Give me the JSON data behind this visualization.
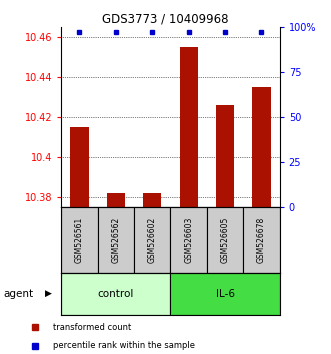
{
  "title": "GDS3773 / 10409968",
  "samples": [
    "GSM526561",
    "GSM526562",
    "GSM526602",
    "GSM526603",
    "GSM526605",
    "GSM526678"
  ],
  "bar_values": [
    10.415,
    10.382,
    10.382,
    10.455,
    10.426,
    10.435
  ],
  "percentile_values": [
    97,
    97,
    97,
    97,
    97,
    97
  ],
  "ylim_left": [
    10.375,
    10.465
  ],
  "ylim_right": [
    0,
    100
  ],
  "yticks_left": [
    10.38,
    10.4,
    10.42,
    10.44,
    10.46
  ],
  "yticks_left_labels": [
    "10.38",
    "10.4",
    "10.42",
    "10.44",
    "10.46"
  ],
  "yticks_right": [
    0,
    25,
    50,
    75,
    100
  ],
  "yticks_right_labels": [
    "0",
    "25",
    "50",
    "75",
    "100%"
  ],
  "bar_color": "#aa1100",
  "dot_color": "#0000cc",
  "groups": [
    {
      "label": "control",
      "indices": [
        0,
        1,
        2
      ],
      "color": "#ccffcc",
      "border_color": "#000000"
    },
    {
      "label": "IL-6",
      "indices": [
        3,
        4,
        5
      ],
      "color": "#44dd44",
      "border_color": "#000000"
    }
  ],
  "agent_label": "agent",
  "legend_bar_label": "transformed count",
  "legend_dot_label": "percentile rank within the sample",
  "sample_box_color": "#cccccc",
  "bar_width": 0.5
}
